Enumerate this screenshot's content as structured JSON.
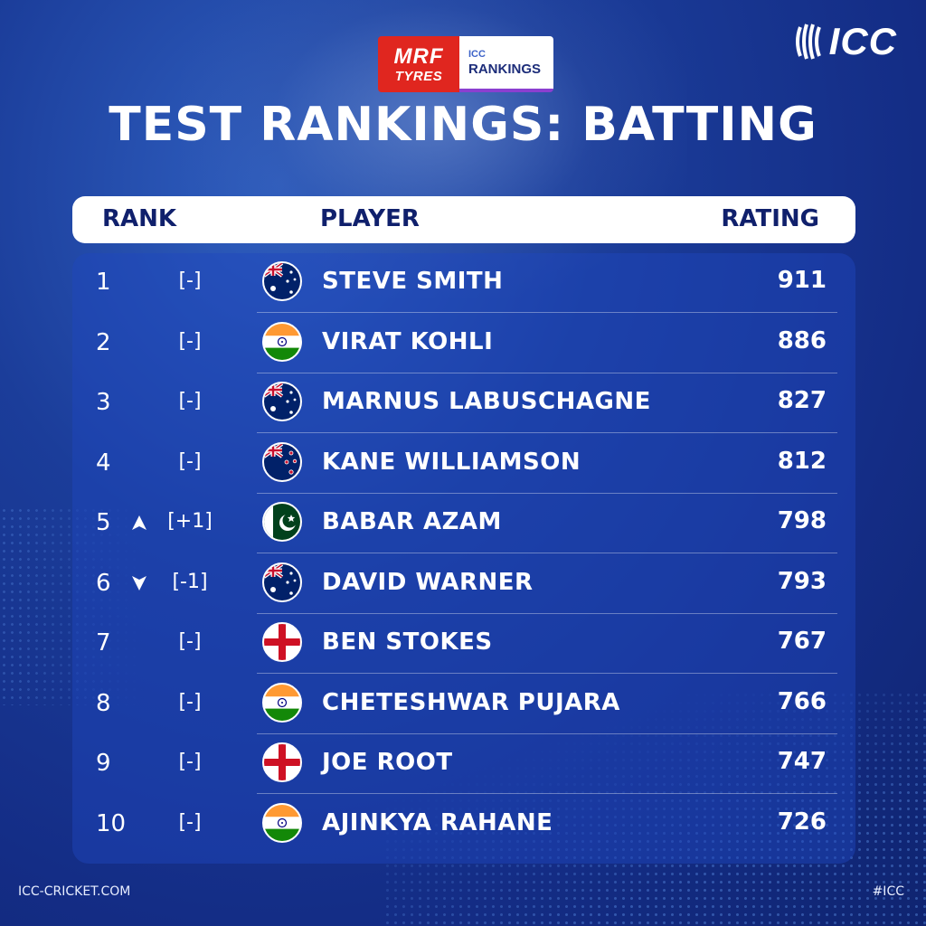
{
  "sponsor": {
    "brand_line1": "MRF",
    "brand_line2": "TYRES",
    "rankings_line1": "ICC",
    "rankings_line2": "RANKINGS"
  },
  "logo": {
    "text": "ICC",
    "icon": "cricket-ball-icon"
  },
  "title": "TEST RANKINGS: BATTING",
  "header": {
    "rank": "RANK",
    "player": "PLAYER",
    "rating": "RATING"
  },
  "colors": {
    "background": "#142d86",
    "header_bg": "#ffffff",
    "header_text": "#10206c",
    "panel": "#1e46be"
  },
  "rows": [
    {
      "rank": "1",
      "change": "[-]",
      "movement": "none",
      "flag": "australia",
      "player": "STEVE SMITH",
      "rating": "911"
    },
    {
      "rank": "2",
      "change": "[-]",
      "movement": "none",
      "flag": "india",
      "player": "VIRAT KOHLI",
      "rating": "886"
    },
    {
      "rank": "3",
      "change": "[-]",
      "movement": "none",
      "flag": "australia",
      "player": "MARNUS LABUSCHAGNE",
      "rating": "827"
    },
    {
      "rank": "4",
      "change": "[-]",
      "movement": "none",
      "flag": "new-zealand",
      "player": "KANE WILLIAMSON",
      "rating": "812"
    },
    {
      "rank": "5",
      "change": "[+1]",
      "movement": "up",
      "flag": "pakistan",
      "player": "BABAR AZAM",
      "rating": "798"
    },
    {
      "rank": "6",
      "change": "[-1]",
      "movement": "down",
      "flag": "australia",
      "player": "DAVID WARNER",
      "rating": "793"
    },
    {
      "rank": "7",
      "change": "[-]",
      "movement": "none",
      "flag": "england",
      "player": "BEN STOKES",
      "rating": "767"
    },
    {
      "rank": "8",
      "change": "[-]",
      "movement": "none",
      "flag": "india",
      "player": "CHETESHWAR PUJARA",
      "rating": "766"
    },
    {
      "rank": "9",
      "change": "[-]",
      "movement": "none",
      "flag": "england",
      "player": "JOE ROOT",
      "rating": "747"
    },
    {
      "rank": "10",
      "change": "[-]",
      "movement": "none",
      "flag": "india",
      "player": "AJINKYA RAHANE",
      "rating": "726"
    }
  ],
  "footer": {
    "left": "ICC-CRICKET.COM",
    "right": "#ICC"
  }
}
